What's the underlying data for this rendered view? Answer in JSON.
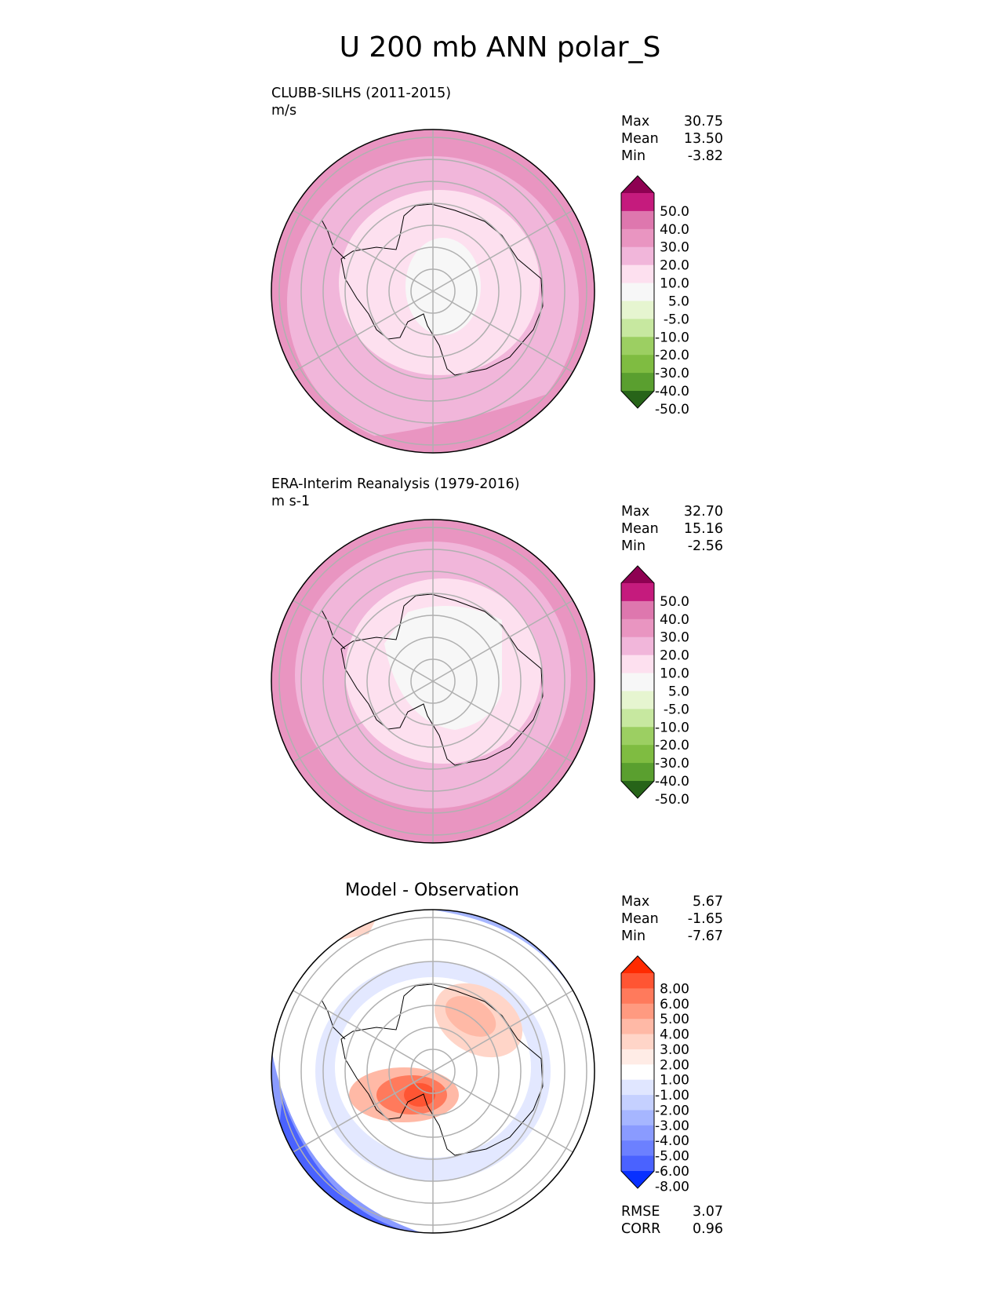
{
  "title": "U 200 mb ANN polar_S",
  "panels": [
    {
      "label_line1": "CLUBB-SILHS (2011-2015)",
      "label_line2": "m/s",
      "stats": [
        {
          "label": "Max",
          "value": "30.75"
        },
        {
          "label": "Mean",
          "value": "13.50"
        },
        {
          "label": "Min",
          "value": "-3.82"
        }
      ]
    },
    {
      "label_line1": "ERA-Interim Reanalysis (1979-2016)",
      "label_line2": "m s-1",
      "stats": [
        {
          "label": "Max",
          "value": "32.70"
        },
        {
          "label": "Mean",
          "value": "15.16"
        },
        {
          "label": "Min",
          "value": "-2.56"
        }
      ]
    },
    {
      "label_line1": "Model - Observation",
      "stats": [
        {
          "label": "Max",
          "value": "5.67"
        },
        {
          "label": "Mean",
          "value": "-1.65"
        },
        {
          "label": "Min",
          "value": "-7.67"
        }
      ],
      "extra_stats": [
        {
          "label": "RMSE",
          "value": "3.07"
        },
        {
          "label": "CORR",
          "value": "0.96"
        }
      ]
    }
  ],
  "colorbars": {
    "field": {
      "ticks": [
        "50.0",
        "40.0",
        "30.0",
        "20.0",
        "10.0",
        "5.0",
        "-5.0",
        "-10.0",
        "-20.0",
        "-30.0",
        "-40.0",
        "-50.0"
      ],
      "colors": [
        "#8e0152",
        "#c51b7d",
        "#de77ae",
        "#e995c1",
        "#f1b6da",
        "#fde0ef",
        "#f7f7f7",
        "#e6f5d0",
        "#c7e8a0",
        "#9ccf62",
        "#7fbc41",
        "#5a9f2f",
        "#276419"
      ]
    },
    "diff": {
      "ticks": [
        "8.00",
        "6.00",
        "5.00",
        "4.00",
        "3.00",
        "2.00",
        "1.00",
        "-1.00",
        "-2.00",
        "-3.00",
        "-4.00",
        "-5.00",
        "-6.00",
        "-8.00"
      ],
      "colors": [
        "#ff2a00",
        "#ff5533",
        "#ff7a5c",
        "#ff9a80",
        "#ffb9a6",
        "#ffd5c8",
        "#ffecE6",
        "#ffffff",
        "#e0e6ff",
        "#c5d0ff",
        "#a6b6ff",
        "#8a9bff",
        "#6c80ff",
        "#4a62ff",
        "#0830ff"
      ]
    }
  }
}
